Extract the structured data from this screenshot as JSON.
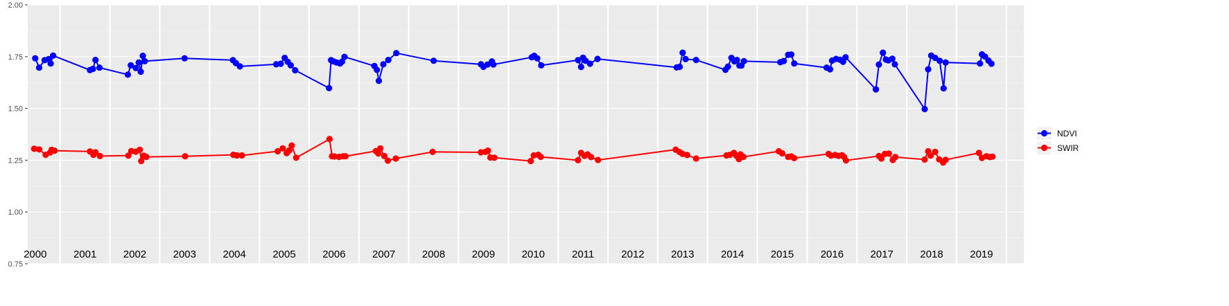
{
  "chart_data": {
    "type": "line",
    "ylim": [
      0.75,
      2.0
    ],
    "y_ticks": [
      "0.75",
      "1.00",
      "1.25",
      "1.50",
      "1.75",
      "2.00"
    ],
    "x_range": [
      1999.85,
      2019.85
    ],
    "year_labels": [
      "2000",
      "2001",
      "2002",
      "2003",
      "2004",
      "2005",
      "2006",
      "2007",
      "2008",
      "2009",
      "2010",
      "2011",
      "2012",
      "2013",
      "2014",
      "2015",
      "2016",
      "2017",
      "2018",
      "2019"
    ],
    "year_label_positions": [
      2000.0,
      2001.0,
      2002.0,
      2003.0,
      2004.0,
      2005.0,
      2006.0,
      2007.0,
      2008.0,
      2009.0,
      2010.0,
      2011.0,
      2012.0,
      2013.0,
      2014.0,
      2015.0,
      2016.0,
      2017.0,
      2018.0,
      2019.0
    ],
    "year_boundaries": [
      2000.5,
      2001.5,
      2002.5,
      2003.5,
      2004.5,
      2005.5,
      2006.5,
      2007.5,
      2008.5,
      2009.5,
      2010.5,
      2011.5,
      2012.5,
      2013.5,
      2014.5,
      2015.5,
      2016.5,
      2017.5,
      2018.5,
      2019.5
    ],
    "grid": true,
    "legend_position": "right",
    "series": [
      {
        "name": "NDVI",
        "color": "#0000ff",
        "points": [
          [
            2000.0,
            1.742
          ],
          [
            2000.08,
            1.697
          ],
          [
            2000.19,
            1.733
          ],
          [
            2000.27,
            1.738
          ],
          [
            2000.31,
            1.717
          ],
          [
            2000.36,
            1.755
          ],
          [
            2001.1,
            1.685
          ],
          [
            2001.16,
            1.691
          ],
          [
            2001.21,
            1.734
          ],
          [
            2001.29,
            1.697
          ],
          [
            2001.86,
            1.663
          ],
          [
            2001.92,
            1.708
          ],
          [
            2002.02,
            1.695
          ],
          [
            2002.08,
            1.722
          ],
          [
            2002.12,
            1.677
          ],
          [
            2002.16,
            1.754
          ],
          [
            2002.2,
            1.728
          ],
          [
            2003.0,
            1.742
          ],
          [
            2003.97,
            1.733
          ],
          [
            2004.03,
            1.719
          ],
          [
            2004.11,
            1.703
          ],
          [
            2004.84,
            1.713
          ],
          [
            2004.93,
            1.716
          ],
          [
            2005.01,
            1.744
          ],
          [
            2005.07,
            1.725
          ],
          [
            2005.13,
            1.708
          ],
          [
            2005.22,
            1.684
          ],
          [
            2005.9,
            1.598
          ],
          [
            2005.94,
            1.733
          ],
          [
            2005.99,
            1.727
          ],
          [
            2006.05,
            1.722
          ],
          [
            2006.12,
            1.717
          ],
          [
            2006.16,
            1.726
          ],
          [
            2006.21,
            1.749
          ],
          [
            2006.81,
            1.705
          ],
          [
            2006.86,
            1.686
          ],
          [
            2006.9,
            1.633
          ],
          [
            2006.99,
            1.713
          ],
          [
            2007.09,
            1.734
          ],
          [
            2007.25,
            1.767
          ],
          [
            2008.0,
            1.73
          ],
          [
            2008.95,
            1.713
          ],
          [
            2009.0,
            1.701
          ],
          [
            2009.08,
            1.712
          ],
          [
            2009.17,
            1.727
          ],
          [
            2009.2,
            1.712
          ],
          [
            2009.97,
            1.747
          ],
          [
            2010.02,
            1.754
          ],
          [
            2010.08,
            1.742
          ],
          [
            2010.16,
            1.708
          ],
          [
            2010.9,
            1.733
          ],
          [
            2010.96,
            1.7
          ],
          [
            2011.0,
            1.745
          ],
          [
            2011.05,
            1.73
          ],
          [
            2011.14,
            1.716
          ],
          [
            2011.29,
            1.739
          ],
          [
            2012.88,
            1.698
          ],
          [
            2012.94,
            1.701
          ],
          [
            2013.0,
            1.769
          ],
          [
            2013.06,
            1.738
          ],
          [
            2013.27,
            1.734
          ],
          [
            2013.86,
            1.686
          ],
          [
            2013.91,
            1.702
          ],
          [
            2013.98,
            1.744
          ],
          [
            2014.04,
            1.727
          ],
          [
            2014.09,
            1.734
          ],
          [
            2014.14,
            1.707
          ],
          [
            2014.18,
            1.707
          ],
          [
            2014.23,
            1.728
          ],
          [
            2014.96,
            1.723
          ],
          [
            2015.03,
            1.729
          ],
          [
            2015.12,
            1.759
          ],
          [
            2015.18,
            1.76
          ],
          [
            2015.24,
            1.717
          ],
          [
            2015.89,
            1.697
          ],
          [
            2015.96,
            1.689
          ],
          [
            2016.0,
            1.731
          ],
          [
            2016.08,
            1.739
          ],
          [
            2016.16,
            1.735
          ],
          [
            2016.22,
            1.725
          ],
          [
            2016.27,
            1.747
          ],
          [
            2016.88,
            1.592
          ],
          [
            2016.94,
            1.712
          ],
          [
            2017.02,
            1.769
          ],
          [
            2017.08,
            1.736
          ],
          [
            2017.13,
            1.732
          ],
          [
            2017.21,
            1.74
          ],
          [
            2017.26,
            1.713
          ],
          [
            2017.86,
            1.497
          ],
          [
            2017.93,
            1.689
          ],
          [
            2017.99,
            1.755
          ],
          [
            2018.07,
            1.744
          ],
          [
            2018.16,
            1.73
          ],
          [
            2018.24,
            1.597
          ],
          [
            2018.28,
            1.722
          ],
          [
            2018.97,
            1.717
          ],
          [
            2019.01,
            1.761
          ],
          [
            2019.07,
            1.75
          ],
          [
            2019.14,
            1.731
          ],
          [
            2019.2,
            1.716
          ]
        ]
      },
      {
        "name": "SWIR",
        "color": "#ff0000",
        "points": [
          [
            1999.98,
            1.305
          ],
          [
            2000.08,
            1.302
          ],
          [
            2000.21,
            1.276
          ],
          [
            2000.3,
            1.287
          ],
          [
            2000.33,
            1.3
          ],
          [
            2000.39,
            1.296
          ],
          [
            2001.1,
            1.292
          ],
          [
            2001.17,
            1.276
          ],
          [
            2001.21,
            1.288
          ],
          [
            2001.3,
            1.27
          ],
          [
            2001.87,
            1.272
          ],
          [
            2001.93,
            1.294
          ],
          [
            2002.02,
            1.291
          ],
          [
            2002.1,
            1.3
          ],
          [
            2002.13,
            1.246
          ],
          [
            2002.18,
            1.272
          ],
          [
            2002.23,
            1.266
          ],
          [
            2003.01,
            1.269
          ],
          [
            2003.98,
            1.276
          ],
          [
            2004.05,
            1.273
          ],
          [
            2004.15,
            1.273
          ],
          [
            2004.87,
            1.293
          ],
          [
            2004.97,
            1.307
          ],
          [
            2005.05,
            1.284
          ],
          [
            2005.1,
            1.297
          ],
          [
            2005.15,
            1.321
          ],
          [
            2005.24,
            1.262
          ],
          [
            2005.91,
            1.352
          ],
          [
            2005.96,
            1.269
          ],
          [
            2006.01,
            1.268
          ],
          [
            2006.1,
            1.266
          ],
          [
            2006.18,
            1.269
          ],
          [
            2006.23,
            1.269
          ],
          [
            2006.84,
            1.294
          ],
          [
            2006.89,
            1.282
          ],
          [
            2006.93,
            1.307
          ],
          [
            2007.01,
            1.27
          ],
          [
            2007.08,
            1.248
          ],
          [
            2007.24,
            1.258
          ],
          [
            2007.98,
            1.29
          ],
          [
            2008.95,
            1.288
          ],
          [
            2009.04,
            1.29
          ],
          [
            2009.09,
            1.296
          ],
          [
            2009.14,
            1.263
          ],
          [
            2009.22,
            1.262
          ],
          [
            2009.95,
            1.246
          ],
          [
            2010.01,
            1.273
          ],
          [
            2010.1,
            1.276
          ],
          [
            2010.15,
            1.266
          ],
          [
            2010.9,
            1.25
          ],
          [
            2010.96,
            1.285
          ],
          [
            2011.03,
            1.271
          ],
          [
            2011.09,
            1.278
          ],
          [
            2011.16,
            1.265
          ],
          [
            2011.3,
            1.251
          ],
          [
            2012.86,
            1.301
          ],
          [
            2012.94,
            1.289
          ],
          [
            2013.0,
            1.28
          ],
          [
            2013.09,
            1.275
          ],
          [
            2013.27,
            1.258
          ],
          [
            2013.88,
            1.273
          ],
          [
            2013.95,
            1.276
          ],
          [
            2014.03,
            1.285
          ],
          [
            2014.08,
            1.271
          ],
          [
            2014.13,
            1.255
          ],
          [
            2014.16,
            1.278
          ],
          [
            2014.22,
            1.266
          ],
          [
            2014.93,
            1.293
          ],
          [
            2015.0,
            1.283
          ],
          [
            2015.12,
            1.266
          ],
          [
            2015.18,
            1.268
          ],
          [
            2015.24,
            1.26
          ],
          [
            2015.93,
            1.28
          ],
          [
            2015.98,
            1.272
          ],
          [
            2016.06,
            1.275
          ],
          [
            2016.13,
            1.271
          ],
          [
            2016.2,
            1.274
          ],
          [
            2016.24,
            1.266
          ],
          [
            2016.28,
            1.249
          ],
          [
            2016.94,
            1.27
          ],
          [
            2016.99,
            1.258
          ],
          [
            2017.06,
            1.28
          ],
          [
            2017.14,
            1.282
          ],
          [
            2017.22,
            1.251
          ],
          [
            2017.27,
            1.265
          ],
          [
            2017.86,
            1.253
          ],
          [
            2017.93,
            1.293
          ],
          [
            2017.98,
            1.272
          ],
          [
            2018.07,
            1.29
          ],
          [
            2018.15,
            1.254
          ],
          [
            2018.23,
            1.239
          ],
          [
            2018.28,
            1.252
          ],
          [
            2018.95,
            1.285
          ],
          [
            2019.01,
            1.261
          ],
          [
            2019.1,
            1.269
          ],
          [
            2019.17,
            1.265
          ],
          [
            2019.22,
            1.267
          ]
        ]
      }
    ]
  }
}
